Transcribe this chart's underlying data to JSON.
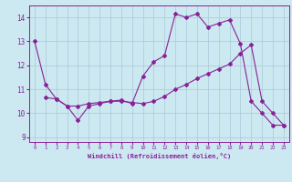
{
  "xlabel": "Windchill (Refroidissement éolien,°C)",
  "bg_color": "#cce8f0",
  "grid_color": "#aac8d8",
  "line_color": "#882299",
  "line1_x": [
    0,
    1,
    2,
    3,
    4,
    5,
    6,
    7,
    8,
    9,
    10,
    11,
    12,
    13,
    14,
    15,
    16,
    17,
    18,
    19,
    20,
    21,
    22,
    23
  ],
  "line1_y": [
    13.0,
    11.2,
    10.6,
    10.3,
    9.7,
    10.3,
    10.4,
    10.5,
    10.55,
    10.4,
    11.55,
    12.15,
    12.4,
    14.15,
    14.0,
    14.15,
    13.6,
    13.75,
    13.9,
    12.9,
    10.5,
    10.0,
    9.5,
    9.5
  ],
  "line2_x": [
    1,
    2,
    3,
    4,
    5,
    6,
    7,
    8,
    9,
    10,
    11,
    12,
    13,
    14,
    15,
    16,
    17,
    18,
    19,
    20,
    21,
    22,
    23
  ],
  "line2_y": [
    10.65,
    10.6,
    10.3,
    10.3,
    10.4,
    10.45,
    10.5,
    10.5,
    10.45,
    10.4,
    10.5,
    10.7,
    11.0,
    11.2,
    11.45,
    11.65,
    11.85,
    12.05,
    12.5,
    12.85,
    10.5,
    10.0,
    9.5
  ],
  "xlim": [
    -0.5,
    23.5
  ],
  "ylim": [
    8.8,
    14.5
  ],
  "yticks": [
    9,
    10,
    11,
    12,
    13,
    14
  ],
  "xticks": [
    0,
    1,
    2,
    3,
    4,
    5,
    6,
    7,
    8,
    9,
    10,
    11,
    12,
    13,
    14,
    15,
    16,
    17,
    18,
    19,
    20,
    21,
    22,
    23
  ]
}
